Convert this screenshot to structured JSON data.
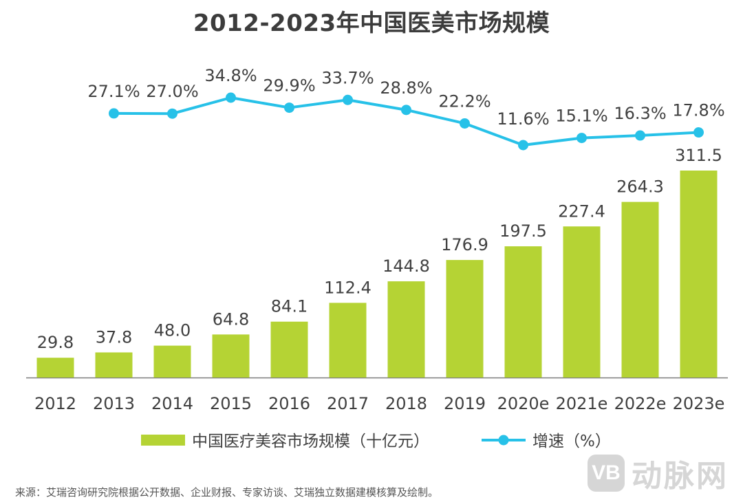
{
  "chart_data": {
    "type": "bar+line",
    "title": "2012-2023年中国医美市场规模",
    "categories": [
      "2012",
      "2013",
      "2014",
      "2015",
      "2016",
      "2017",
      "2018",
      "2019",
      "2020e",
      "2021e",
      "2022e",
      "2023e"
    ],
    "series": [
      {
        "name": "中国医疗美容市场规模（十亿元）",
        "kind": "bar",
        "values": [
          29.8,
          37.8,
          48.0,
          64.8,
          84.1,
          112.4,
          144.8,
          176.9,
          197.5,
          227.4,
          264.3,
          311.5
        ],
        "labels": [
          "29.8",
          "37.8",
          "48.0",
          "64.8",
          "84.1",
          "112.4",
          "144.8",
          "176.9",
          "197.5",
          "227.4",
          "264.3",
          "311.5"
        ],
        "color": "#b5d334"
      },
      {
        "name": "增速（%）",
        "kind": "line",
        "values": [
          null,
          27.1,
          27.0,
          34.8,
          29.9,
          33.7,
          28.8,
          22.2,
          11.6,
          15.1,
          16.3,
          17.8
        ],
        "labels": [
          "",
          "27.1%",
          "27.0%",
          "34.8%",
          "29.9%",
          "33.7%",
          "28.8%",
          "22.2%",
          "11.6%",
          "15.1%",
          "16.3%",
          "17.8%"
        ],
        "color": "#27c1e8"
      }
    ],
    "ylim_bar": [
      0,
      311.5
    ],
    "ylim_line": [
      11.6,
      34.8
    ],
    "grid": false,
    "legend_position": "bottom-center"
  },
  "source": "来源：艾瑞咨询研究院根据公开数据、企业财报、专家访谈、艾瑞独立数据建模核算及绘制。",
  "watermark": {
    "logo_text": "VB",
    "text": "动脉网"
  },
  "colors": {
    "title": "#3c3c3c",
    "text": "#404040",
    "axis": "#7f7f7f"
  }
}
